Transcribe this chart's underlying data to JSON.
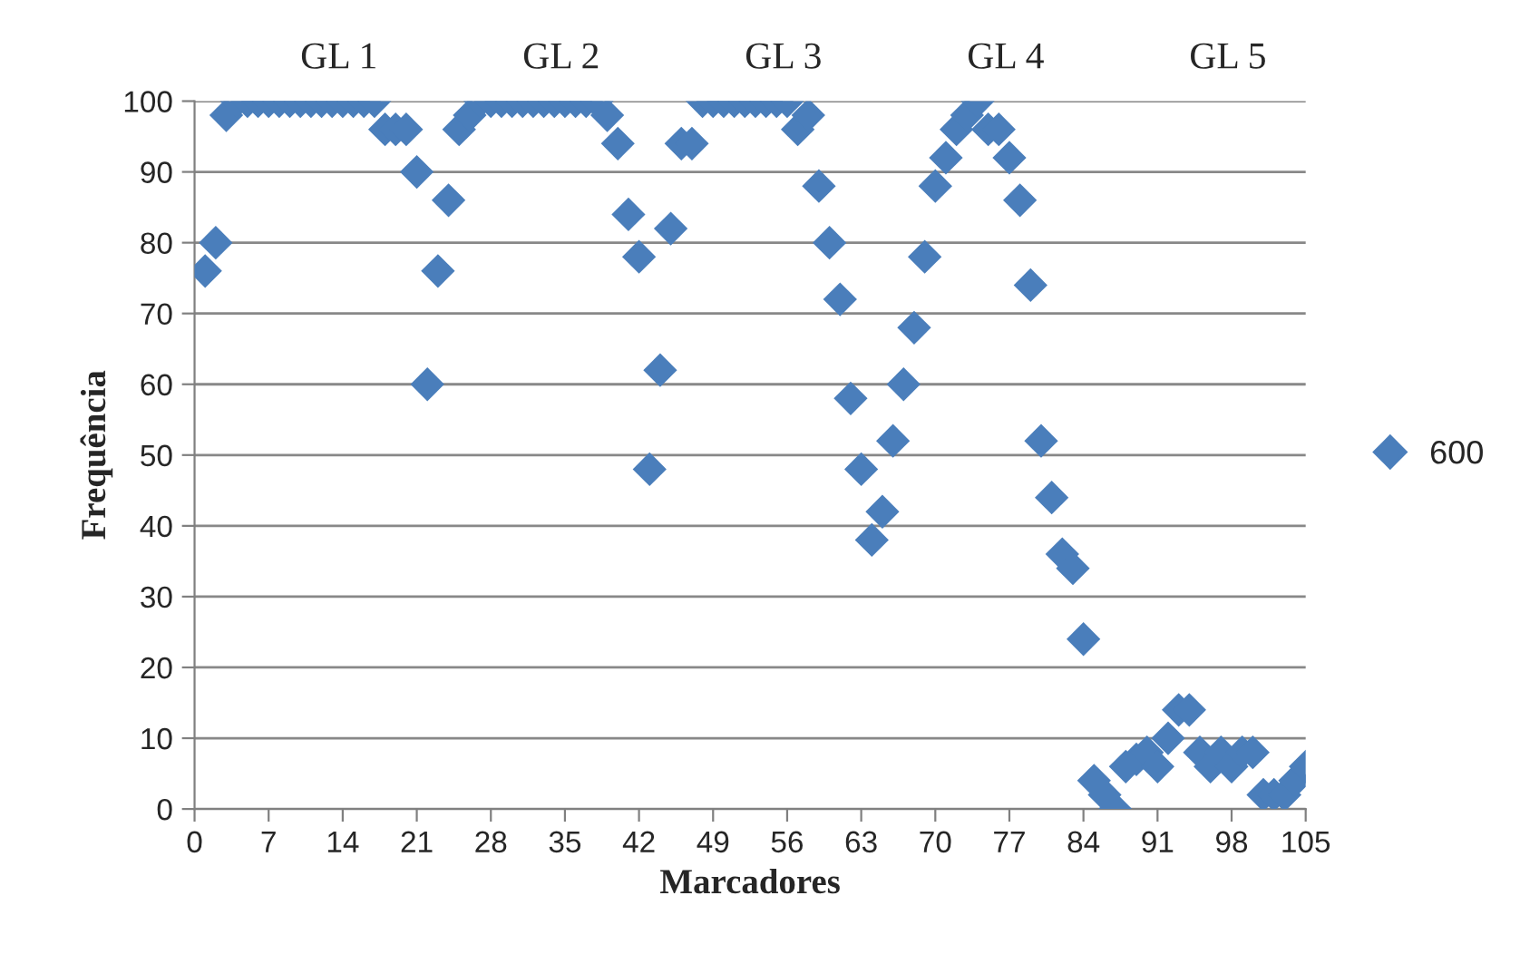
{
  "chart_data": {
    "type": "scatter",
    "xlabel": "Marcadores",
    "ylabel": "Frequência",
    "annotations": [
      "GL 1",
      "GL 2",
      "GL 3",
      "GL 4",
      "GL 5"
    ],
    "x": [
      1,
      2,
      3,
      4,
      5,
      6,
      7,
      8,
      9,
      10,
      11,
      12,
      13,
      14,
      15,
      16,
      17,
      18,
      19,
      20,
      21,
      22,
      23,
      24,
      25,
      26,
      27,
      28,
      29,
      30,
      31,
      32,
      33,
      34,
      35,
      36,
      37,
      38,
      39,
      40,
      41,
      42,
      43,
      44,
      45,
      46,
      47,
      48,
      49,
      50,
      51,
      52,
      53,
      54,
      55,
      56,
      57,
      58,
      59,
      60,
      61,
      62,
      63,
      64,
      65,
      66,
      67,
      68,
      69,
      70,
      71,
      72,
      73,
      74,
      75,
      76,
      77,
      78,
      79,
      80,
      81,
      82,
      83,
      84,
      85,
      86,
      87,
      88,
      89,
      90,
      91,
      92,
      93,
      94,
      95,
      96,
      97,
      98,
      99,
      100,
      101,
      102,
      103,
      104,
      105
    ],
    "series": [
      {
        "name": "600",
        "color": "#4a7ebb",
        "values": [
          76,
          80,
          98,
          100,
          100,
          100,
          100,
          100,
          100,
          100,
          100,
          100,
          100,
          100,
          100,
          100,
          100,
          96,
          96,
          96,
          90,
          60,
          76,
          86,
          96,
          98,
          100,
          100,
          100,
          100,
          100,
          100,
          100,
          100,
          100,
          100,
          100,
          100,
          98,
          94,
          84,
          78,
          48,
          62,
          82,
          94,
          94,
          100,
          100,
          100,
          100,
          100,
          100,
          100,
          100,
          100,
          96,
          98,
          88,
          80,
          72,
          58,
          48,
          38,
          42,
          52,
          60,
          68,
          78,
          88,
          92,
          96,
          98,
          100,
          96,
          96,
          92,
          86,
          74,
          52,
          44,
          36,
          34,
          24,
          4,
          2,
          0,
          6,
          7,
          8,
          6,
          10,
          14,
          14,
          8,
          6,
          8,
          6,
          8,
          8,
          2,
          2,
          2,
          4,
          6
        ]
      }
    ],
    "xlim": [
      0,
      105
    ],
    "xticks": [
      0,
      7,
      14,
      21,
      28,
      35,
      42,
      49,
      56,
      63,
      70,
      77,
      84,
      91,
      98,
      105
    ],
    "ylim": [
      0,
      100
    ],
    "yticks": [
      0,
      10,
      20,
      30,
      40,
      50,
      60,
      70,
      80,
      90,
      100
    ],
    "grid": "y",
    "legend": "right",
    "marker": "diamond"
  }
}
